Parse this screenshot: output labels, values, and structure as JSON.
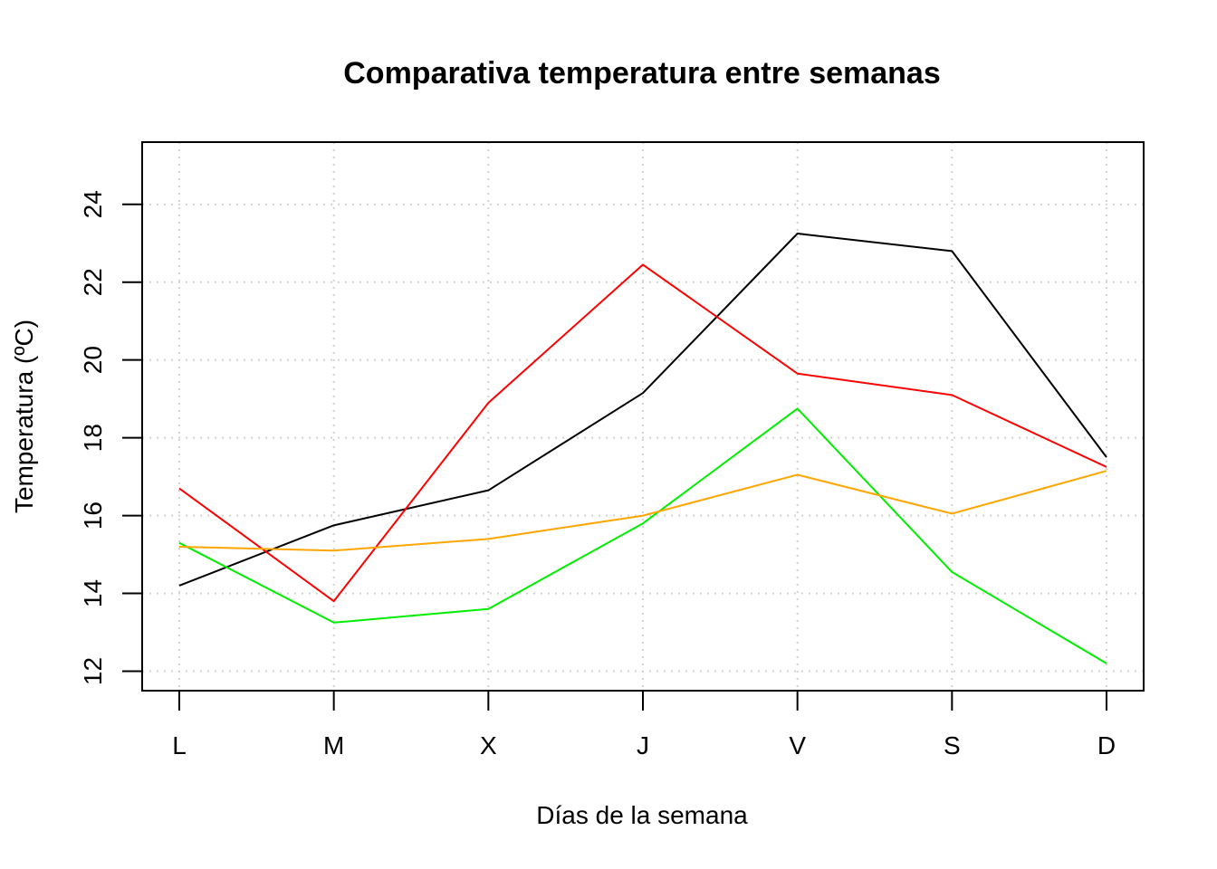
{
  "chart_data": {
    "type": "line",
    "title": "Comparativa temperatura entre semanas",
    "xlabel": "Días de la semana",
    "ylabel": "Temperatura (ºC)",
    "categories": [
      "L",
      "M",
      "X",
      "J",
      "V",
      "S",
      "D"
    ],
    "yticks": [
      12,
      14,
      16,
      18,
      20,
      22,
      24
    ],
    "ylim": [
      11.5,
      25.6
    ],
    "grid": true,
    "legend": "none",
    "series": [
      {
        "color": "#000000",
        "values": [
          14.2,
          15.75,
          16.65,
          19.15,
          23.25,
          22.8,
          17.5
        ]
      },
      {
        "color": "#ff0000",
        "values": [
          16.7,
          13.8,
          18.9,
          22.45,
          19.65,
          19.1,
          17.25
        ]
      },
      {
        "color": "#00ee00",
        "values": [
          15.3,
          13.25,
          13.6,
          15.8,
          18.75,
          14.55,
          12.2
        ]
      },
      {
        "color": "#ffa500",
        "values": [
          15.2,
          15.1,
          15.4,
          16.0,
          17.05,
          16.05,
          17.15
        ]
      }
    ]
  }
}
